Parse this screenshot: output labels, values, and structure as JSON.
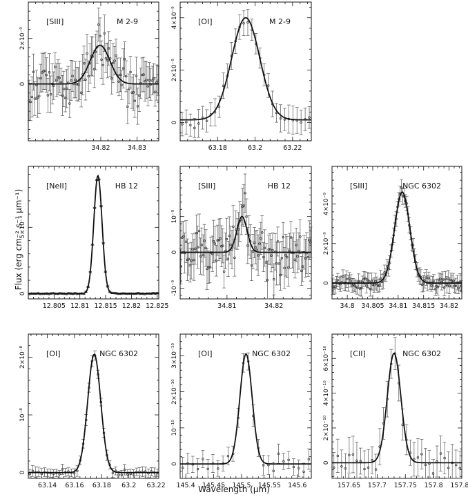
{
  "figure": {
    "ylabel": "Flux (erg cm⁻² s⁻¹ µm⁻¹)",
    "xlabel": "Wavelength (µm)"
  },
  "chart_data": [
    {
      "type": "line",
      "line_label": "[SIII]",
      "object": "M 2-9",
      "xlim": [
        34.8,
        34.836
      ],
      "ylim": [
        -2.5e-09,
        3.6e-09
      ],
      "xticks": [
        34.82,
        34.83
      ],
      "xticklabels": [
        "34.82",
        "34.83"
      ],
      "yticks": [
        0,
        2e-09
      ],
      "yticklabels": [
        "0",
        "2×10⁻⁹"
      ],
      "center": 34.8198,
      "sigma": 0.0027,
      "amplitude": 1.7e-09,
      "baseline": 0.0,
      "data_points": 90,
      "noise": 8e-10,
      "errorbar": 7.5e-10
    },
    {
      "type": "line",
      "line_label": "[OI]",
      "object": "M 2-9",
      "xlim": [
        63.16,
        63.23
      ],
      "ylim": [
        -7e-10,
        4.6e-09
      ],
      "xticks": [
        63.18,
        63.2,
        63.22
      ],
      "xticklabels": [
        "63.18",
        "63.2",
        "63.22"
      ],
      "yticks": [
        0,
        2e-09,
        4e-09
      ],
      "yticklabels": [
        "0",
        "2×10⁻⁹",
        "4×10⁻⁹"
      ],
      "center": 63.195,
      "sigma": 0.0075,
      "amplitude": 3.9e-09,
      "baseline": 1e-10,
      "data_points": 32,
      "noise": 2e-10,
      "errorbar": 4.5e-10
    },
    {
      "type": "line",
      "line_label": "[NeII]",
      "object": "HB 12",
      "xlim": [
        12.8,
        12.8253
      ],
      "ylim": [
        -4e-10,
        9.6e-09
      ],
      "xticks": [
        12.805,
        12.81,
        12.815,
        12.82,
        12.825
      ],
      "xticklabels": [
        "12.805",
        "12.81",
        "12.815",
        "12.82",
        "12.825"
      ],
      "yticks": [
        0,
        5e-09
      ],
      "yticklabels": [
        "0",
        "5×10⁻⁹"
      ],
      "center": 12.8135,
      "sigma": 0.0008,
      "amplitude": 8.9e-09,
      "baseline": 0.0,
      "data_points": 60,
      "noise": 3e-11,
      "errorbar": 5e-11
    },
    {
      "type": "line",
      "line_label": "[SIII]",
      "object": "HB 12",
      "xlim": [
        34.8,
        34.828
      ],
      "ylim": [
        -1.3e-09,
        2.4e-09
      ],
      "xticks": [
        34.81,
        34.82
      ],
      "xticklabels": [
        "34.81",
        "34.82"
      ],
      "yticks": [
        -1e-09,
        0,
        1e-09
      ],
      "yticklabels": [
        "-10⁻⁹",
        "0",
        "10⁻⁹"
      ],
      "center": 34.8132,
      "sigma": 0.0011,
      "amplitude": 1e-09,
      "baseline": 0.0,
      "data_points": 100,
      "noise": 5.5e-10,
      "errorbar": 5e-10
    },
    {
      "type": "line",
      "line_label": "[SIII]",
      "object": "NGC 6302",
      "xlim": [
        34.797,
        34.8225
      ],
      "ylim": [
        -8e-10,
        5.9e-09
      ],
      "xticks": [
        34.8,
        34.805,
        34.81,
        34.815,
        34.82
      ],
      "xticklabels": [
        "34.8",
        "34.805",
        "34.81",
        "34.815",
        "34.82"
      ],
      "yticks": [
        0,
        2e-09,
        4e-09
      ],
      "yticklabels": [
        "0",
        "2×10⁻⁹",
        "4×10⁻⁹"
      ],
      "center": 34.8108,
      "sigma": 0.0015,
      "amplitude": 4.6e-09,
      "baseline": 0.0,
      "data_points": 100,
      "noise": 2.5e-10,
      "errorbar": 3.5e-10
    },
    {
      "type": "line",
      "line_label": "[OI]",
      "object": "NGC 6302",
      "xlim": [
        63.126,
        63.222
      ],
      "ylim": [
        -1e-09,
        2.4e-08
      ],
      "xticks": [
        63.14,
        63.16,
        63.18,
        63.2,
        63.22
      ],
      "xticklabels": [
        "63.14",
        "63.16",
        "63.18",
        "63.2",
        "63.22"
      ],
      "yticks": [
        0,
        1e-08,
        2e-08
      ],
      "yticklabels": [
        "0",
        "10⁻⁸",
        "2×10⁻⁸"
      ],
      "center": 63.1745,
      "sigma": 0.0048,
      "amplitude": 2.05e-08,
      "baseline": 0.0,
      "data_points": 44,
      "noise": 4e-10,
      "errorbar": 8e-10
    },
    {
      "type": "line",
      "line_label": "[OI]",
      "object": "NGC 6302",
      "xlim": [
        145.39,
        145.625
      ],
      "ylim": [
        -4e-11,
        3.6e-10
      ],
      "xticks": [
        145.4,
        145.45,
        145.5,
        145.55,
        145.6
      ],
      "xticklabels": [
        "145.4",
        "145.45",
        "145.5",
        "145.55",
        "145.6"
      ],
      "yticks": [
        0,
        1e-10,
        2e-10,
        3e-10
      ],
      "yticklabels": [
        "0",
        "10⁻¹⁰",
        "2×10⁻¹⁰",
        "3×10⁻¹⁰"
      ],
      "center": 145.508,
      "sigma": 0.011,
      "amplitude": 3.05e-10,
      "baseline": 0.0,
      "data_points": 26,
      "noise": 2e-11,
      "errorbar": 2.5e-11
    },
    {
      "type": "line",
      "line_label": "[CII]",
      "object": "NGC 6302",
      "xlim": [
        157.62,
        157.85
      ],
      "ylim": [
        -9e-11,
        7.4e-10
      ],
      "xticks": [
        157.65,
        157.7,
        157.75,
        157.8,
        157.85
      ],
      "xticklabels": [
        "157.65",
        "157.7",
        "157.75",
        "157.8",
        "157.85"
      ],
      "yticks": [
        0,
        2e-10,
        4e-10,
        6e-10
      ],
      "yticklabels": [
        "0",
        "2×10⁻¹⁰",
        "4×10⁻¹⁰",
        "6×10⁻¹⁰"
      ],
      "center": 157.73,
      "sigma": 0.012,
      "amplitude": 6.3e-10,
      "baseline": 0.0,
      "data_points": 34,
      "noise": 6e-11,
      "errorbar": 9e-11
    }
  ]
}
